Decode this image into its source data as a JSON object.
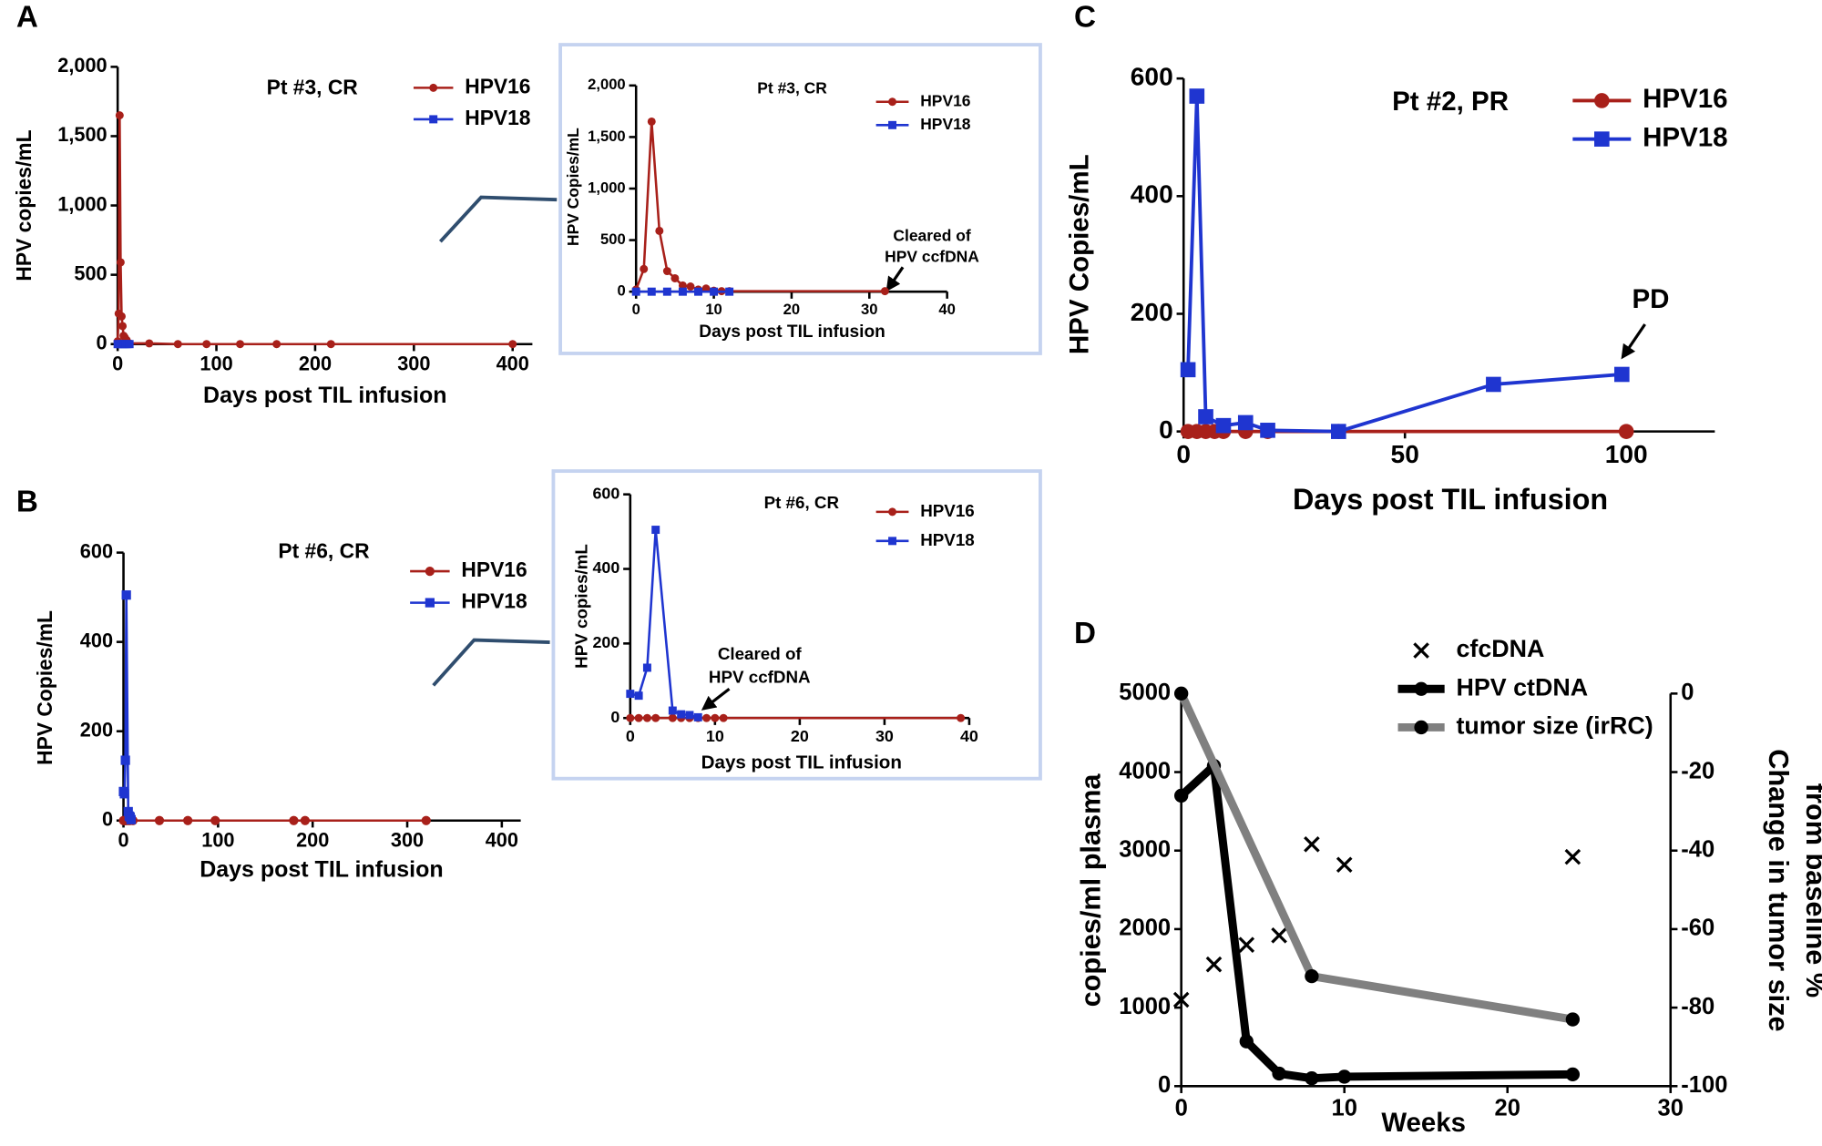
{
  "chart_data": [
    {
      "panel": "A",
      "type": "line",
      "title": "Pt #3, CR",
      "x_label": "Days post TIL infusion",
      "y_label": "HPV copies/mL",
      "xlim": [
        0,
        420
      ],
      "xticks": [
        0,
        100,
        200,
        300,
        400
      ],
      "ylim": [
        0,
        2000
      ],
      "yticks": [
        0,
        500,
        {
          "value": 1000,
          "label": "1,000"
        },
        {
          "value": 1500,
          "label": "1,500"
        },
        {
          "value": 2000,
          "label": "2,000"
        }
      ],
      "series": [
        {
          "name": "HPV16",
          "color": "#a8201a",
          "marker": "circle",
          "x": [
            0,
            1,
            2,
            3,
            4,
            5,
            6,
            7,
            8,
            9,
            10,
            11,
            12,
            32,
            61,
            90,
            124,
            161,
            216,
            400
          ],
          "values": [
            20,
            220,
            1650,
            590,
            200,
            130,
            60,
            50,
            20,
            30,
            10,
            5,
            5,
            5,
            0,
            0,
            0,
            0,
            0,
            0
          ]
        },
        {
          "name": "HPV18",
          "color": "#1f35d0",
          "marker": "square",
          "x": [
            0,
            2,
            4,
            6,
            8,
            10,
            12
          ],
          "values": [
            0,
            0,
            0,
            0,
            0,
            0,
            0
          ]
        }
      ]
    },
    {
      "type": "line",
      "title": "Pt #3, CR",
      "x_label": "Days post TIL infusion",
      "y_label": "HPV Copies/mL",
      "annotation": [
        "Cleared of",
        "HPV ccfDNA"
      ],
      "xlim": [
        0,
        40
      ],
      "xticks": [
        0,
        10,
        20,
        30,
        40
      ],
      "ylim": [
        0,
        2000
      ],
      "yticks": [
        0,
        500,
        {
          "value": 1000,
          "label": "1,000"
        },
        {
          "value": 1500,
          "label": "1,500"
        },
        {
          "value": 2000,
          "label": "2,000"
        }
      ],
      "series": [
        {
          "name": "HPV16",
          "color": "#a8201a",
          "marker": "circle",
          "x": [
            0,
            1,
            2,
            3,
            4,
            5,
            6,
            7,
            8,
            9,
            10,
            11,
            12,
            32
          ],
          "values": [
            20,
            220,
            1650,
            590,
            200,
            130,
            60,
            50,
            20,
            30,
            10,
            5,
            5,
            5
          ]
        },
        {
          "name": "HPV18",
          "color": "#1f35d0",
          "marker": "square",
          "x": [
            0,
            2,
            4,
            6,
            8,
            10,
            12
          ],
          "values": [
            0,
            0,
            0,
            0,
            0,
            0,
            0
          ]
        }
      ]
    },
    {
      "panel": "B",
      "type": "line",
      "title": "Pt #6, CR",
      "x_label": "Days post TIL infusion",
      "y_label": "HPV Copies/mL",
      "xlim": [
        0,
        420
      ],
      "xticks": [
        0,
        100,
        200,
        300,
        400
      ],
      "ylim": [
        0,
        600
      ],
      "yticks": [
        0,
        200,
        400,
        600
      ],
      "series": [
        {
          "name": "HPV16",
          "color": "#a8201a",
          "marker": "circle",
          "x": [
            0,
            1,
            2,
            3,
            5,
            7,
            10,
            38,
            68,
            97,
            180,
            192,
            320
          ],
          "values": [
            0,
            0,
            0,
            0,
            0,
            0,
            0,
            0,
            0,
            0,
            0,
            0,
            0
          ]
        },
        {
          "name": "HPV18",
          "color": "#1f35d0",
          "marker": "square",
          "x": [
            0,
            1,
            2,
            3,
            5,
            6,
            7,
            8
          ],
          "values": [
            65,
            60,
            135,
            505,
            20,
            10,
            8,
            2
          ]
        }
      ]
    },
    {
      "type": "line",
      "title": "Pt #6, CR",
      "x_label": "Days post TIL infusion",
      "y_label": "HPV copies/mL",
      "annotation": [
        "Cleared of",
        "HPV ccfDNA"
      ],
      "xlim": [
        0,
        40
      ],
      "xticks": [
        0,
        10,
        20,
        30,
        40
      ],
      "ylim": [
        0,
        600
      ],
      "yticks": [
        0,
        200,
        400,
        600
      ],
      "series": [
        {
          "name": "HPV16",
          "color": "#a8201a",
          "marker": "circle",
          "x": [
            0,
            1,
            2,
            3,
            5,
            6,
            7,
            8,
            9,
            10,
            11,
            39
          ],
          "values": [
            0,
            0,
            0,
            0,
            0,
            0,
            0,
            0,
            0,
            0,
            0,
            0
          ]
        },
        {
          "name": "HPV18",
          "color": "#1f35d0",
          "marker": "square",
          "x": [
            0,
            1,
            2,
            3,
            5,
            6,
            7,
            8
          ],
          "values": [
            65,
            60,
            135,
            505,
            20,
            10,
            8,
            2
          ]
        }
      ]
    },
    {
      "panel": "C",
      "type": "line",
      "title": "Pt #2, PR",
      "x_label": "Days post TIL infusion",
      "y_label": "HPV Copies/mL",
      "annotation": [
        "PD"
      ],
      "xlim": [
        0,
        120
      ],
      "xticks": [
        0,
        50,
        100
      ],
      "ylim": [
        0,
        600
      ],
      "yticks": [
        0,
        200,
        400,
        600
      ],
      "series": [
        {
          "name": "HPV16",
          "color": "#a8201a",
          "marker": "circle",
          "x": [
            1,
            3,
            5,
            7,
            9,
            14,
            19,
            35,
            100
          ],
          "values": [
            0,
            0,
            0,
            0,
            0,
            0,
            0,
            0,
            0
          ]
        },
        {
          "name": "HPV18",
          "color": "#1f35d0",
          "marker": "square",
          "x": [
            1,
            3,
            5,
            9,
            14,
            19,
            35,
            70,
            99
          ],
          "values": [
            105,
            570,
            25,
            10,
            15,
            2,
            0,
            80,
            97
          ]
        }
      ]
    },
    {
      "panel": "D",
      "type": "line",
      "x_label": "Weeks",
      "y_label": "copies/ml plasma",
      "y2_label": [
        "Change in tumor size",
        "from baseline %"
      ],
      "xlim": [
        0,
        30
      ],
      "xticks": [
        0,
        10,
        20,
        30
      ],
      "ylim": [
        0,
        5000
      ],
      "yticks": [
        0,
        1000,
        2000,
        3000,
        4000,
        5000
      ],
      "y2lim": [
        -100,
        0
      ],
      "y2ticks": [
        -100,
        -80,
        -60,
        -40,
        -20,
        0
      ],
      "series": [
        {
          "name": "cfcDNA",
          "color": "#000000",
          "marker": "x",
          "line": false,
          "x": [
            0,
            2,
            4,
            6,
            8,
            10,
            24
          ],
          "values": [
            1100,
            1550,
            1800,
            1920,
            3080,
            2820,
            2920
          ]
        },
        {
          "name": "HPV ctDNA",
          "color": "#000000",
          "marker": "circle",
          "x": [
            0,
            2,
            4,
            6,
            8,
            10,
            24
          ],
          "values": [
            3700,
            4080,
            570,
            160,
            100,
            120,
            150
          ]
        },
        {
          "name": "tumor size (irRC)",
          "color": "#808080",
          "marker": "circle",
          "marker_color": "#000000",
          "axis": "y2",
          "x": [
            0,
            8,
            24
          ],
          "values": [
            0,
            -72,
            -83
          ]
        }
      ]
    }
  ]
}
